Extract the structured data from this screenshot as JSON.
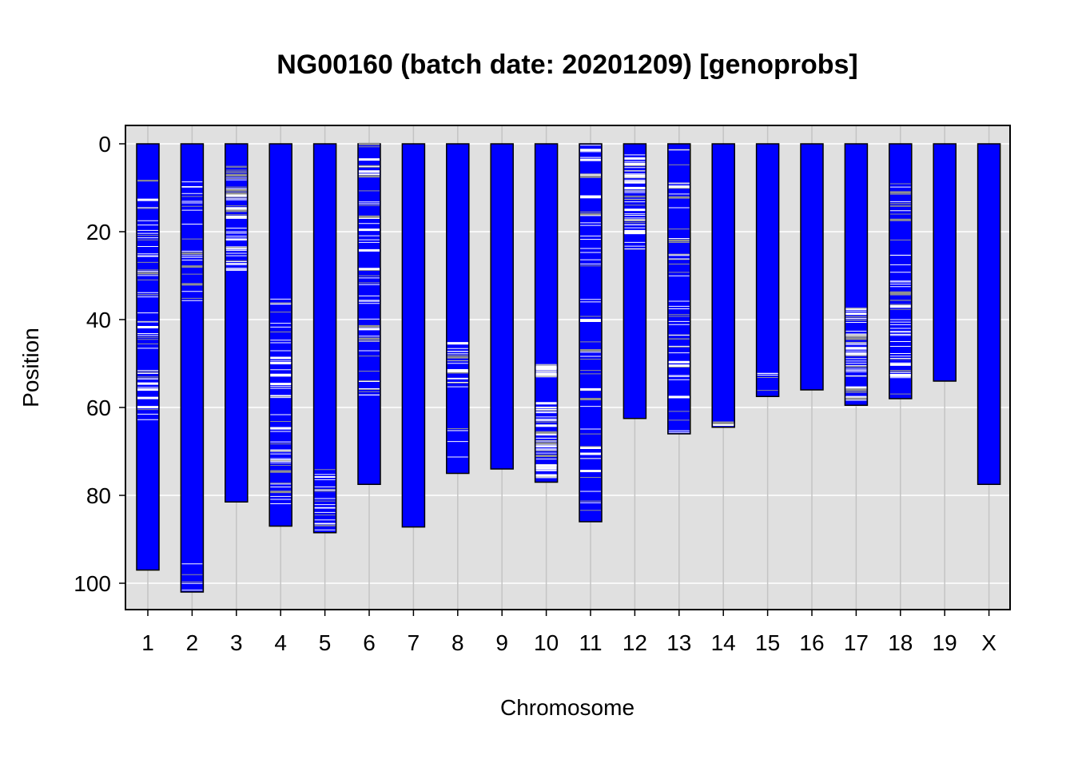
{
  "chart_data": {
    "type": "bar",
    "title": "NG00160 (batch date: 20201209) [genoprobs]",
    "xlabel": "Chromosome",
    "ylabel": "Position",
    "y_reversed": true,
    "ylim": [
      0,
      106
    ],
    "yticks": [
      0,
      20,
      40,
      60,
      80,
      100
    ],
    "grid": true,
    "colors": {
      "bar": "#0000ff",
      "bar_outline": "#000000",
      "panel_bg": "#e0e0e0",
      "grid": "#ffffff",
      "crossover_major": "#ffffff",
      "crossover_minor": "#909090"
    },
    "categories": [
      "1",
      "2",
      "3",
      "4",
      "5",
      "6",
      "7",
      "8",
      "9",
      "10",
      "11",
      "12",
      "13",
      "14",
      "15",
      "16",
      "17",
      "18",
      "19",
      "X"
    ],
    "values": [
      97,
      102,
      81.5,
      87,
      88.5,
      77.5,
      87.2,
      75,
      74,
      77,
      86,
      62.5,
      66,
      64.5,
      57.5,
      56,
      59.5,
      58,
      54,
      77.5
    ],
    "marker_density": [
      {
        "chromosome": "1",
        "from": 8,
        "to": 63,
        "level": "high"
      },
      {
        "chromosome": "2",
        "from": 1,
        "to": 36,
        "level": "medium"
      },
      {
        "chromosome": "2",
        "from": 93,
        "to": 102,
        "level": "low"
      },
      {
        "chromosome": "3",
        "from": 5,
        "to": 29,
        "level": "high"
      },
      {
        "chromosome": "4",
        "from": 35,
        "to": 82,
        "level": "high"
      },
      {
        "chromosome": "5",
        "from": 74,
        "to": 88,
        "level": "medium"
      },
      {
        "chromosome": "6",
        "from": 0,
        "to": 61,
        "level": "high"
      },
      {
        "chromosome": "8",
        "from": 45,
        "to": 56,
        "level": "medium"
      },
      {
        "chromosome": "8",
        "from": 64,
        "to": 75,
        "level": "low"
      },
      {
        "chromosome": "10",
        "from": 50,
        "to": 53,
        "level": "medium"
      },
      {
        "chromosome": "10",
        "from": 59,
        "to": 77,
        "level": "high"
      },
      {
        "chromosome": "11",
        "from": 0,
        "to": 86,
        "level": "high"
      },
      {
        "chromosome": "12",
        "from": 2,
        "to": 24,
        "level": "high"
      },
      {
        "chromosome": "13",
        "from": 1,
        "to": 66,
        "level": "high"
      },
      {
        "chromosome": "14",
        "from": 63,
        "to": 64,
        "level": "low"
      },
      {
        "chromosome": "15",
        "from": 52,
        "to": 57,
        "level": "low"
      },
      {
        "chromosome": "17",
        "from": 37,
        "to": 59,
        "level": "high"
      },
      {
        "chromosome": "18",
        "from": 9,
        "to": 58,
        "level": "high"
      }
    ]
  }
}
